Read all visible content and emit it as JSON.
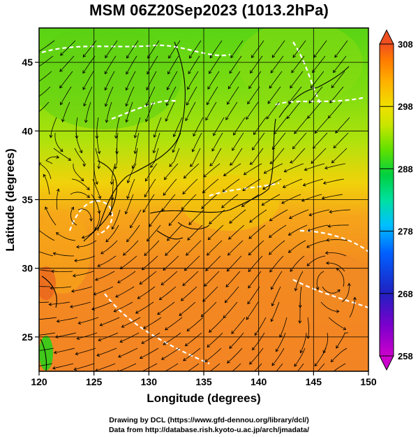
{
  "title": "MSM 06Z20Sep2023 (1013.2hPa)",
  "axes": {
    "xlabel": "Longitude (degrees)",
    "ylabel": "Latitude  (degrees)",
    "lon_range": [
      120,
      150
    ],
    "lat_range": [
      22.5,
      47.5
    ],
    "lon_ticks": [
      120,
      125,
      130,
      135,
      140,
      145,
      150
    ],
    "lat_ticks": [
      25,
      30,
      35,
      40,
      45
    ]
  },
  "colorbar": {
    "range": [
      258,
      308
    ],
    "ticks": [
      258,
      268,
      278,
      288,
      298,
      308
    ],
    "colors": [
      "#cc00cc",
      "#7a00cc",
      "#2020c0",
      "#0060ff",
      "#00c0ff",
      "#00e0a0",
      "#00d040",
      "#60e000",
      "#c8e600",
      "#f0e000",
      "#ffb000",
      "#ff7a00",
      "#f05020"
    ]
  },
  "map_colors": {
    "warm": "#f38a20",
    "mid": "#f2c40a",
    "cool": "#6fd810",
    "green": "#3ec81a",
    "contour": "#ffffff",
    "stream": "#000000"
  },
  "credits": {
    "line1": "Drawing by DCL (https://www.gfd-dennou.org/library/dcl/)",
    "line2": "Data from http://database.rish.kyoto-u.ac.jp/arch/jmadata/"
  }
}
